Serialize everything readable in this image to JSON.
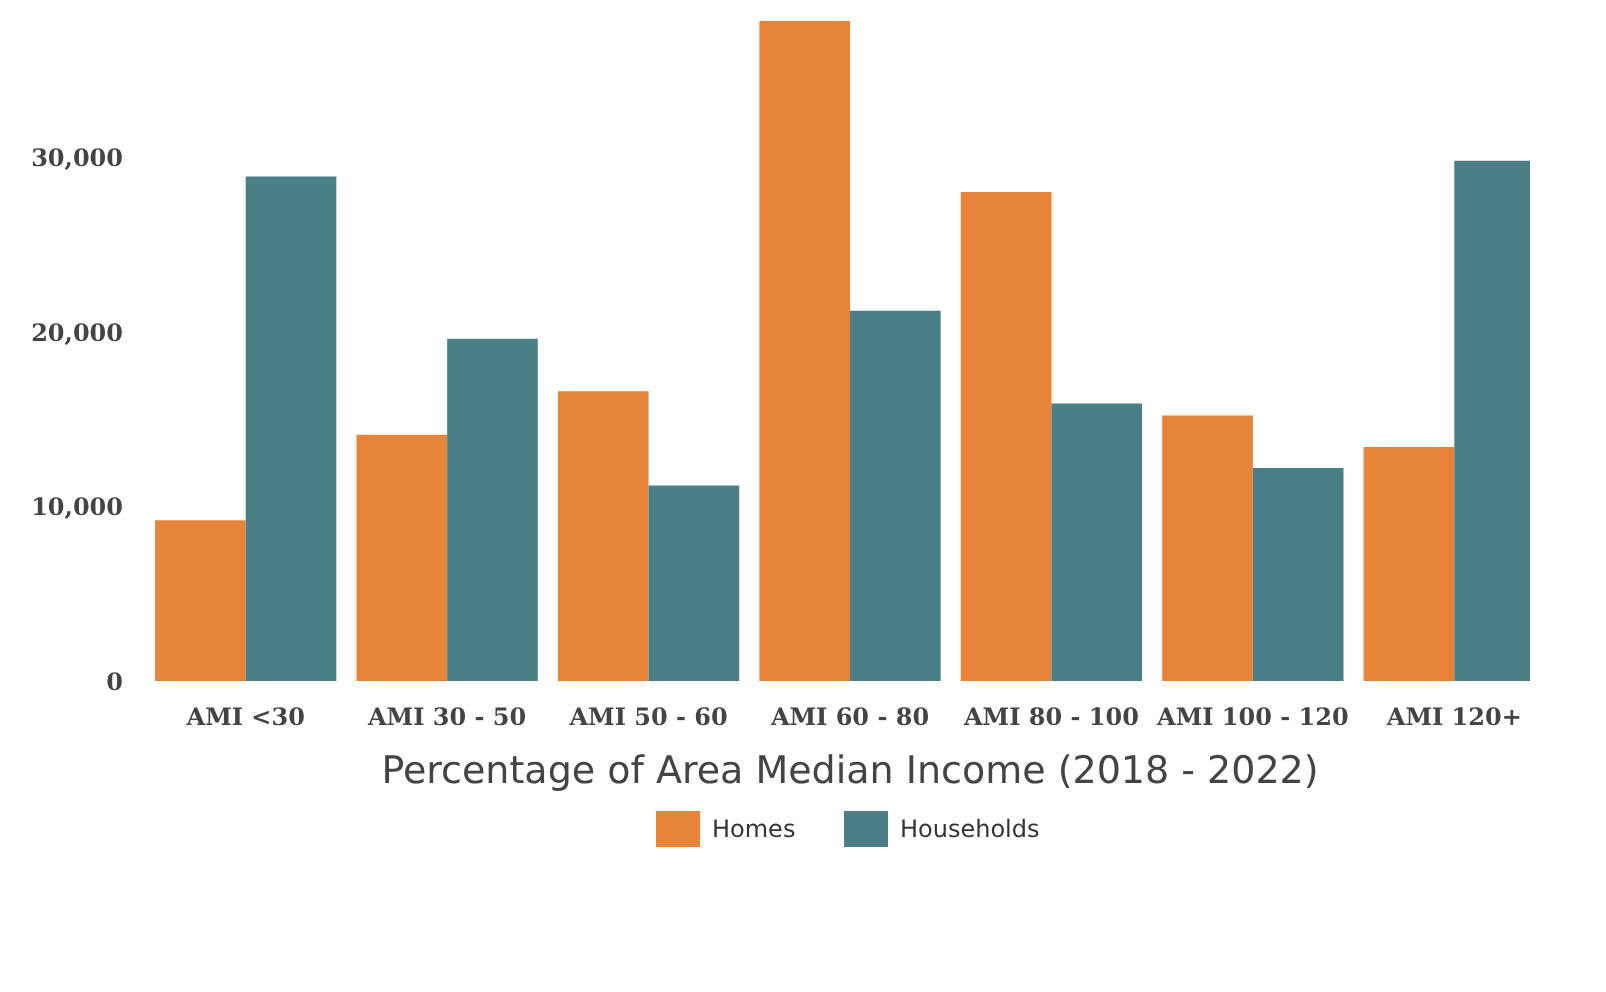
{
  "chart_data": {
    "type": "bar",
    "xlabel": "Percentage of Area Median Income (2018 - 2022)",
    "categories": [
      "AMI <30",
      "AMI 30 - 50",
      "AMI 50 - 60",
      "AMI 60 - 80",
      "AMI 80 - 100",
      "AMI 100 - 120",
      "AMI 120+"
    ],
    "series": [
      {
        "name": "Homes",
        "color": "#e8833a",
        "values": [
          9200,
          14100,
          16600,
          37800,
          28000,
          15200,
          13400
        ]
      },
      {
        "name": "Households",
        "color": "#4a7f87",
        "values": [
          28900,
          19600,
          11200,
          21200,
          15900,
          12200,
          29800
        ]
      }
    ],
    "ylim": [
      0,
      37800
    ],
    "yticks": [
      0,
      {
        "value": 10000,
        "label": "10,000"
      },
      {
        "value": 20000,
        "label": "20,000"
      },
      {
        "value": 30000,
        "label": "30,000"
      }
    ],
    "legend": "bottom"
  }
}
